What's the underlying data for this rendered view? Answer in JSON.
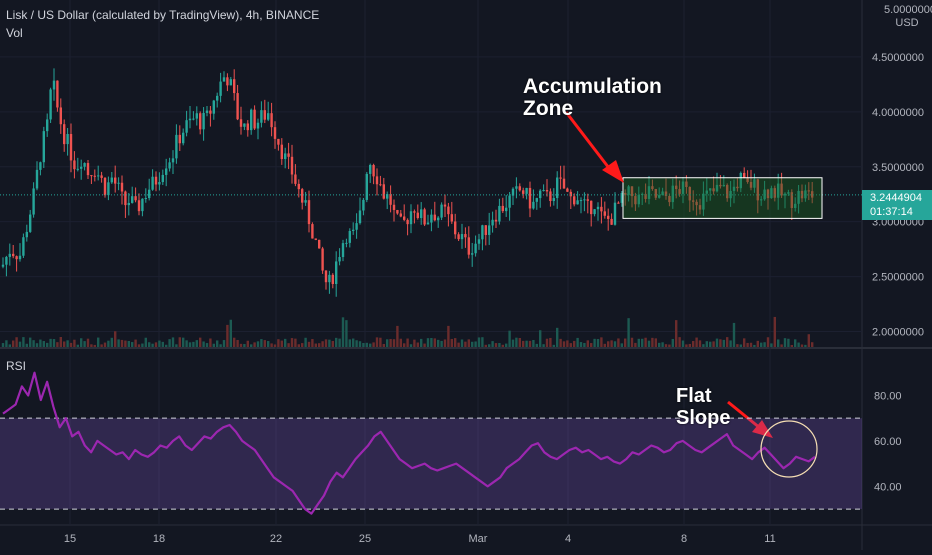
{
  "header": {
    "title": "Lisk / US Dollar (calculated by TradingView), 4h, BINANCE",
    "volume_label": "Vol",
    "rsi_label": "RSI"
  },
  "price_axis": {
    "unit_top": "5.0000000",
    "unit": "USD",
    "ticks": [
      "4.5000000",
      "4.0000000",
      "3.5000000",
      "3.0000000",
      "2.5000000",
      "2.0000000"
    ],
    "last_price": "3.2444904",
    "countdown": "01:37:14"
  },
  "rsi_axis": {
    "ticks": [
      "80.00",
      "60.00",
      "40.00"
    ]
  },
  "time_axis": {
    "ticks": [
      "15",
      "18",
      "22",
      "25",
      "Mar",
      "4",
      "8",
      "11"
    ]
  },
  "annotations": {
    "accumulation_line1": "Accumulation",
    "accumulation_line2": "Zone",
    "flat_line1": "Flat",
    "flat_line2": "Slope"
  },
  "colors": {
    "background": "#131722",
    "up": "#26a69a",
    "down": "#ef5350",
    "rsi_line": "#9c27b0",
    "rsi_band": "#7e57c2",
    "arrow": "#ff1a1a",
    "zone_fill": "#1b5e20"
  },
  "chart_data": [
    {
      "type": "candlestick",
      "title": "Lisk / US Dollar (calculated by TradingView), 4h, BINANCE",
      "ylim": [
        1.85,
        5.0
      ],
      "x_ticks": [
        "15",
        "18",
        "22",
        "25",
        "Mar",
        "4",
        "8",
        "11"
      ],
      "y_ticks": [
        2.0,
        2.5,
        3.0,
        3.5,
        4.0,
        4.5,
        5.0
      ],
      "last_price": 3.2444904,
      "close_path": [
        [
          0,
          2.55
        ],
        [
          10,
          2.75
        ],
        [
          20,
          2.7
        ],
        [
          28,
          3.0
        ],
        [
          34,
          3.25
        ],
        [
          40,
          3.6
        ],
        [
          48,
          3.9
        ],
        [
          52,
          4.3
        ],
        [
          58,
          4.0
        ],
        [
          64,
          3.8
        ],
        [
          70,
          3.65
        ],
        [
          76,
          3.5
        ],
        [
          82,
          3.6
        ],
        [
          88,
          3.45
        ],
        [
          94,
          3.5
        ],
        [
          100,
          3.4
        ],
        [
          106,
          3.3
        ],
        [
          112,
          3.4
        ],
        [
          118,
          3.3
        ],
        [
          124,
          3.15
        ],
        [
          130,
          3.2
        ],
        [
          136,
          3.1
        ],
        [
          142,
          3.2
        ],
        [
          148,
          3.3
        ],
        [
          154,
          3.35
        ],
        [
          160,
          3.45
        ],
        [
          166,
          3.55
        ],
        [
          172,
          3.6
        ],
        [
          178,
          3.75
        ],
        [
          184,
          3.85
        ],
        [
          190,
          3.9
        ],
        [
          196,
          3.95
        ],
        [
          202,
          3.9
        ],
        [
          208,
          3.95
        ],
        [
          214,
          4.1
        ],
        [
          220,
          4.25
        ],
        [
          226,
          4.35
        ],
        [
          232,
          4.2
        ],
        [
          238,
          3.95
        ],
        [
          244,
          3.85
        ],
        [
          250,
          3.95
        ],
        [
          256,
          3.9
        ],
        [
          262,
          3.95
        ],
        [
          268,
          4.0
        ],
        [
          274,
          3.85
        ],
        [
          280,
          3.7
        ],
        [
          286,
          3.55
        ],
        [
          292,
          3.45
        ],
        [
          298,
          3.3
        ],
        [
          304,
          3.15
        ],
        [
          310,
          3.0
        ],
        [
          316,
          2.8
        ],
        [
          322,
          2.55
        ],
        [
          328,
          2.4
        ],
        [
          334,
          2.55
        ],
        [
          340,
          2.75
        ],
        [
          346,
          2.9
        ],
        [
          352,
          2.85
        ],
        [
          358,
          2.95
        ],
        [
          364,
          3.25
        ],
        [
          368,
          3.6
        ],
        [
          372,
          3.5
        ],
        [
          378,
          3.4
        ],
        [
          384,
          3.25
        ],
        [
          390,
          3.2
        ],
        [
          396,
          3.0
        ],
        [
          402,
          2.95
        ],
        [
          408,
          3.05
        ],
        [
          414,
          3.15
        ],
        [
          420,
          3.05
        ],
        [
          426,
          3.0
        ],
        [
          432,
          3.1
        ],
        [
          438,
          3.05
        ],
        [
          444,
          3.1
        ],
        [
          450,
          3.0
        ],
        [
          456,
          2.9
        ],
        [
          462,
          2.85
        ],
        [
          468,
          2.75
        ],
        [
          474,
          2.8
        ],
        [
          480,
          2.85
        ],
        [
          486,
          2.95
        ],
        [
          492,
          3.05
        ],
        [
          498,
          3.1
        ],
        [
          504,
          3.15
        ],
        [
          510,
          3.2
        ],
        [
          516,
          3.25
        ],
        [
          522,
          3.3
        ],
        [
          528,
          3.2
        ],
        [
          534,
          3.15
        ],
        [
          540,
          3.25
        ],
        [
          546,
          3.2
        ],
        [
          552,
          3.25
        ],
        [
          558,
          3.35
        ],
        [
          564,
          3.3
        ],
        [
          570,
          3.2
        ],
        [
          576,
          3.25
        ],
        [
          582,
          3.15
        ],
        [
          588,
          3.1
        ],
        [
          594,
          3.2
        ],
        [
          600,
          3.05
        ],
        [
          606,
          3.0
        ],
        [
          612,
          3.05
        ],
        [
          618,
          3.15
        ],
        [
          624,
          3.2
        ],
        [
          630,
          3.25
        ],
        [
          640,
          3.2
        ],
        [
          650,
          3.25
        ],
        [
          660,
          3.2
        ],
        [
          670,
          3.25
        ],
        [
          680,
          3.3
        ],
        [
          690,
          3.25
        ],
        [
          700,
          3.2
        ],
        [
          710,
          3.25
        ],
        [
          720,
          3.3
        ],
        [
          730,
          3.25
        ],
        [
          740,
          3.4
        ],
        [
          746,
          3.3
        ],
        [
          752,
          3.35
        ],
        [
          760,
          3.25
        ],
        [
          770,
          3.3
        ],
        [
          780,
          3.25
        ],
        [
          790,
          3.2
        ],
        [
          800,
          3.25
        ],
        [
          815,
          3.24
        ]
      ],
      "accumulation_zone": {
        "y_range": [
          3.03,
          3.4
        ]
      }
    },
    {
      "type": "line",
      "title": "RSI",
      "ylim": [
        23,
        100
      ],
      "y_ticks": [
        40,
        60,
        80
      ],
      "band": [
        30,
        70
      ],
      "values": [
        72,
        74,
        76,
        84,
        80,
        90,
        78,
        86,
        75,
        66,
        70,
        62,
        64,
        58,
        55,
        60,
        58,
        56,
        54,
        55,
        52,
        56,
        54,
        53,
        55,
        58,
        57,
        60,
        62,
        58,
        56,
        59,
        62,
        61,
        64,
        66,
        67,
        64,
        60,
        58,
        56,
        52,
        48,
        44,
        42,
        40,
        38,
        34,
        30,
        28,
        32,
        36,
        42,
        46,
        44,
        48,
        52,
        55,
        58,
        62,
        64,
        60,
        56,
        52,
        50,
        48,
        49,
        50,
        48,
        47,
        48,
        49,
        50,
        48,
        46,
        44,
        42,
        40,
        42,
        44,
        48,
        50,
        52,
        55,
        58,
        59,
        55,
        53,
        52,
        54,
        56,
        57,
        55,
        56,
        54,
        52,
        53,
        51,
        50,
        52,
        55,
        54,
        56,
        58,
        57,
        55,
        56,
        59,
        60,
        58,
        56,
        55,
        57,
        59,
        61,
        63,
        58,
        56,
        54,
        52,
        55,
        57,
        54,
        51,
        48,
        50,
        53,
        52,
        51,
        53
      ]
    }
  ]
}
